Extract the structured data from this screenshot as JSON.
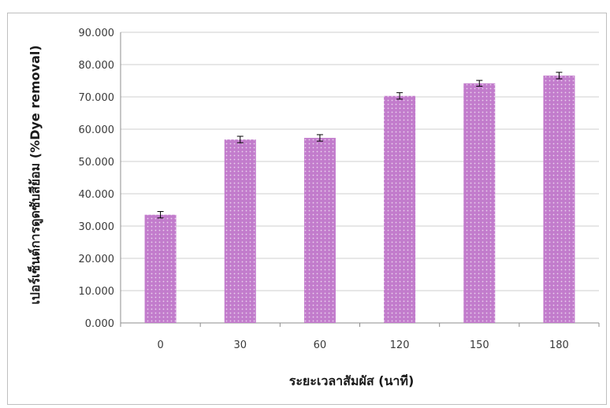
{
  "chart_data": {
    "type": "bar",
    "categories": [
      "0",
      "30",
      "60",
      "120",
      "150",
      "180"
    ],
    "values": [
      33.5,
      56.8,
      57.3,
      70.3,
      74.2,
      76.6
    ],
    "error": [
      1.0,
      1.0,
      1.0,
      1.0,
      0.9,
      1.0
    ],
    "title": "",
    "xlabel": "ระยะเวลาสัมผัส (นาที)",
    "ylabel": "เปอร์เซ็นต์การดูดซับสีย้อม (%Dye removal)",
    "ylim": [
      0,
      90
    ],
    "yticks": [
      "0.000",
      "10.000",
      "20.000",
      "30.000",
      "40.000",
      "50.000",
      "60.000",
      "70.000",
      "80.000",
      "90.000"
    ],
    "grid": true,
    "legend": "none",
    "bar_color": "#c27ccc",
    "bar_dot_color": "#ead3ee",
    "grid_color": "#cfcfcf",
    "axis_color": "#8c8c8c"
  }
}
